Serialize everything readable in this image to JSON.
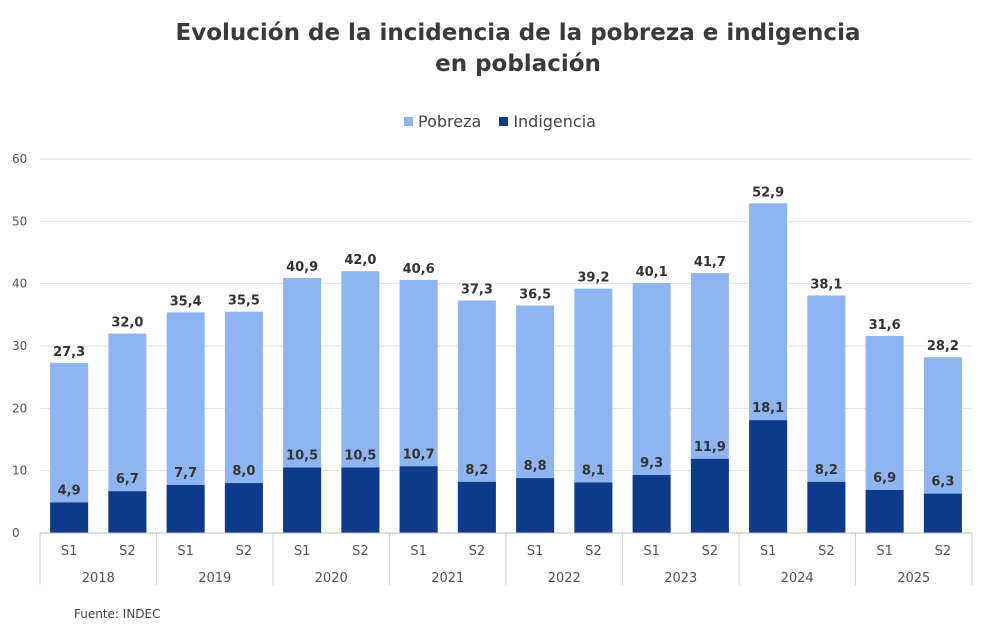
{
  "chart_data": {
    "type": "bar",
    "stacking": "overlay",
    "title": "Evolución de la incidencia de la pobreza e indigencia en población",
    "title_lines": [
      "Evolución de la incidencia de la pobreza e indigencia",
      "en población"
    ],
    "ylim": [
      0,
      60
    ],
    "yticks": [
      0,
      10,
      20,
      30,
      40,
      50,
      60
    ],
    "grid": true,
    "legend_position": "top-center",
    "categories": [
      "S1",
      "S2",
      "S1",
      "S2",
      "S1",
      "S2",
      "S1",
      "S2",
      "S1",
      "S2",
      "S1",
      "S2",
      "S1",
      "S2",
      "S1",
      "S2"
    ],
    "groups": [
      {
        "label": "2018",
        "size": 2
      },
      {
        "label": "2019",
        "size": 2
      },
      {
        "label": "2020",
        "size": 2
      },
      {
        "label": "2021",
        "size": 2
      },
      {
        "label": "2022",
        "size": 2
      },
      {
        "label": "2023",
        "size": 2
      },
      {
        "label": "2024",
        "size": 2
      },
      {
        "label": "2025",
        "size": 2
      }
    ],
    "series": [
      {
        "name": "Pobreza",
        "color": "#8eb4f2",
        "values": [
          27.3,
          32.0,
          35.4,
          35.5,
          40.9,
          42.0,
          40.6,
          37.3,
          36.5,
          39.2,
          40.1,
          41.7,
          52.9,
          38.1,
          31.6,
          28.2
        ],
        "labels": [
          "27,3",
          "32,0",
          "35,4",
          "35,5",
          "40,9",
          "42,0",
          "40,6",
          "37,3",
          "36,5",
          "39,2",
          "40,1",
          "41,7",
          "52,9",
          "38,1",
          "31,6",
          "28,2"
        ]
      },
      {
        "name": "Indigencia",
        "color": "#0e3a8c",
        "values": [
          4.9,
          6.7,
          7.7,
          8.0,
          10.5,
          10.5,
          10.7,
          8.2,
          8.8,
          8.1,
          9.3,
          11.9,
          18.1,
          8.2,
          6.9,
          6.3
        ],
        "labels": [
          "4,9",
          "6,7",
          "7,7",
          "8,0",
          "10,5",
          "10,5",
          "10,7",
          "8,2",
          "8,8",
          "8,1",
          "9,3",
          "11,9",
          "18,1",
          "8,2",
          "6,9",
          "6,3"
        ]
      }
    ],
    "source": "Fuente: INDEC"
  }
}
